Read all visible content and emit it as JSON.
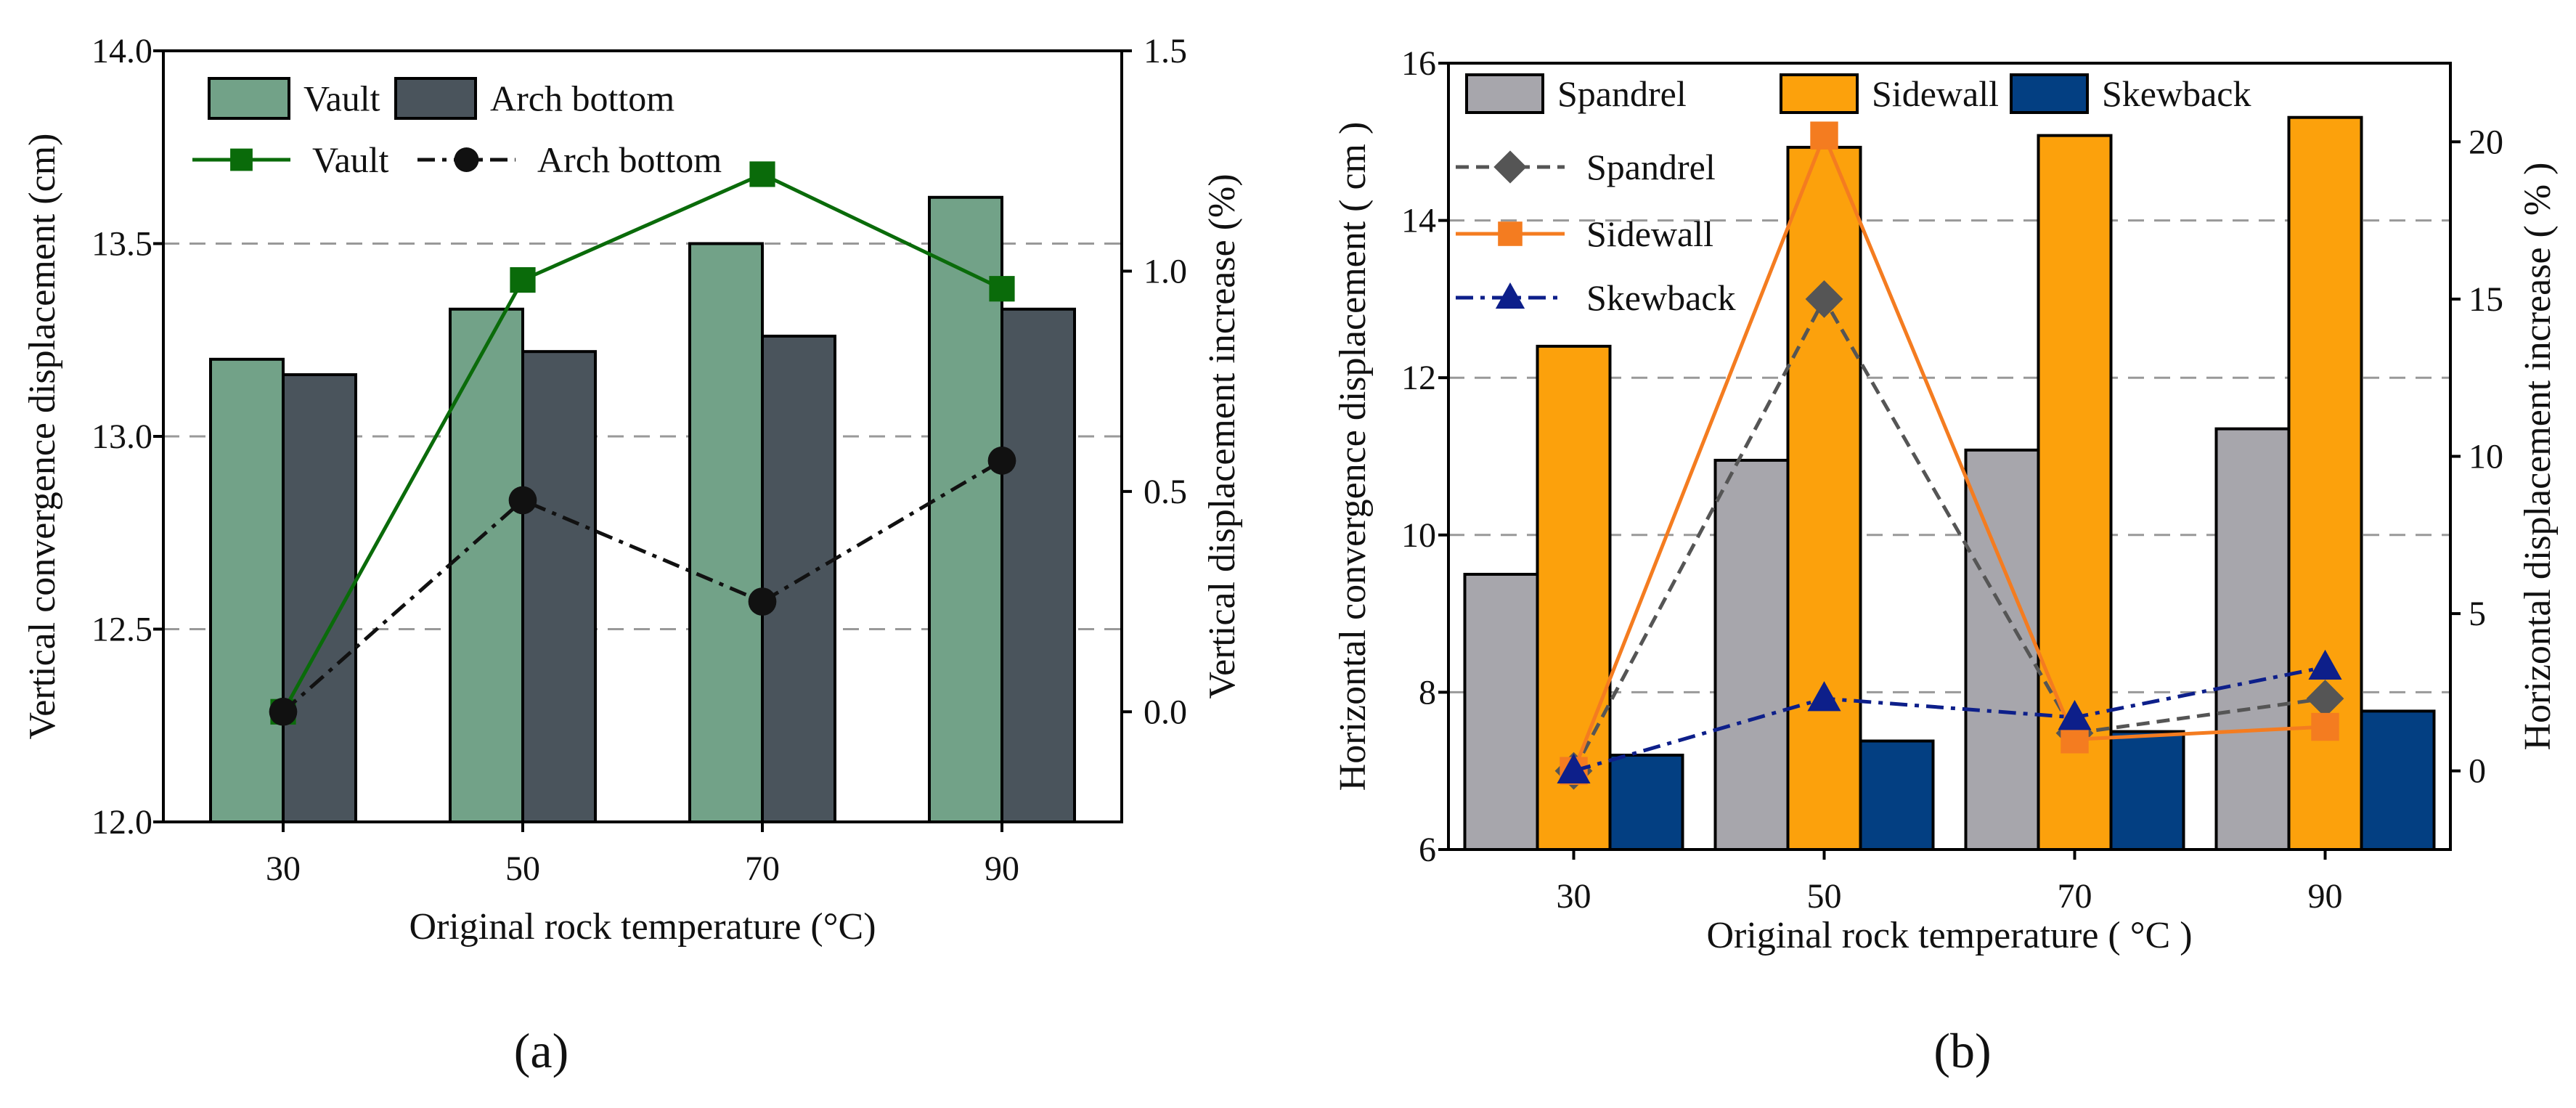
{
  "chart_data": [
    {
      "type": "bar+line",
      "panel_label": "(a)",
      "categories": [
        "30",
        "50",
        "70",
        "90"
      ],
      "xlabel": "Original rock temperature (°C)",
      "ylabel_left": "Vertical convergence displacement (cm)",
      "ylabel_right": "Vertical displacement increase (%)",
      "ylim_left": [
        12.0,
        14.0
      ],
      "ylim_right": [
        -0.25,
        1.5
      ],
      "yticks_left": [
        "12.0",
        "12.5",
        "13.0",
        "13.5",
        "14.0"
      ],
      "yticks_right": [
        "0.0",
        "0.5",
        "1.0",
        "1.5"
      ],
      "grid": "dashed horizontal",
      "bar_series": [
        {
          "name": "Vault",
          "color": "#72a288",
          "values": [
            13.2,
            13.33,
            13.5,
            13.62
          ]
        },
        {
          "name": "Arch bottom",
          "color": "#4a545c",
          "values": [
            13.16,
            13.22,
            13.26,
            13.33
          ]
        }
      ],
      "line_series": [
        {
          "name": "Vault",
          "color": "#0a6b0a",
          "marker": "square",
          "dash": "solid",
          "values": [
            0.0,
            0.98,
            1.22,
            0.96
          ]
        },
        {
          "name": "Arch bottom",
          "color": "#111111",
          "marker": "circle",
          "dash": "dashdot",
          "values": [
            0.0,
            0.48,
            0.25,
            0.57
          ]
        }
      ],
      "legend": "top-left"
    },
    {
      "type": "bar+line",
      "panel_label": "(b)",
      "categories": [
        "30",
        "50",
        "70",
        "90"
      ],
      "xlabel": "Original rock temperature ( °C )",
      "ylabel_left": "Horizontal convergence displacement ( cm )",
      "ylabel_right": "Horizontal displacement increase ( % )",
      "ylim_left": [
        6,
        16
      ],
      "ylim_right": [
        -2.5,
        22.5
      ],
      "yticks_left": [
        "6",
        "8",
        "10",
        "12",
        "14",
        "16"
      ],
      "yticks_right": [
        "0",
        "5",
        "10",
        "15",
        "20"
      ],
      "grid": "dashed horizontal",
      "bar_series": [
        {
          "name": "Spandrel",
          "color": "#a7a6ac",
          "values": [
            9.5,
            10.95,
            11.08,
            11.35
          ]
        },
        {
          "name": "Sidewall",
          "color": "#fca10c",
          "values": [
            12.4,
            14.93,
            15.08,
            15.31
          ]
        },
        {
          "name": "Skewback",
          "color": "#033f82",
          "values": [
            7.2,
            7.38,
            7.5,
            7.76
          ]
        }
      ],
      "line_series": [
        {
          "name": "Spandrel",
          "color": "#555555",
          "marker": "diamond",
          "dash": "dashed",
          "values": [
            0.0,
            15.0,
            1.2,
            2.3
          ]
        },
        {
          "name": "Sidewall",
          "color": "#f47c20",
          "marker": "square",
          "dash": "solid",
          "values": [
            0.0,
            20.2,
            1.0,
            1.4
          ]
        },
        {
          "name": "Skewback",
          "color": "#0d1f8a",
          "marker": "triangle",
          "dash": "dashdot",
          "values": [
            0.0,
            2.3,
            1.7,
            3.3
          ]
        }
      ],
      "legend": "top-left"
    }
  ]
}
